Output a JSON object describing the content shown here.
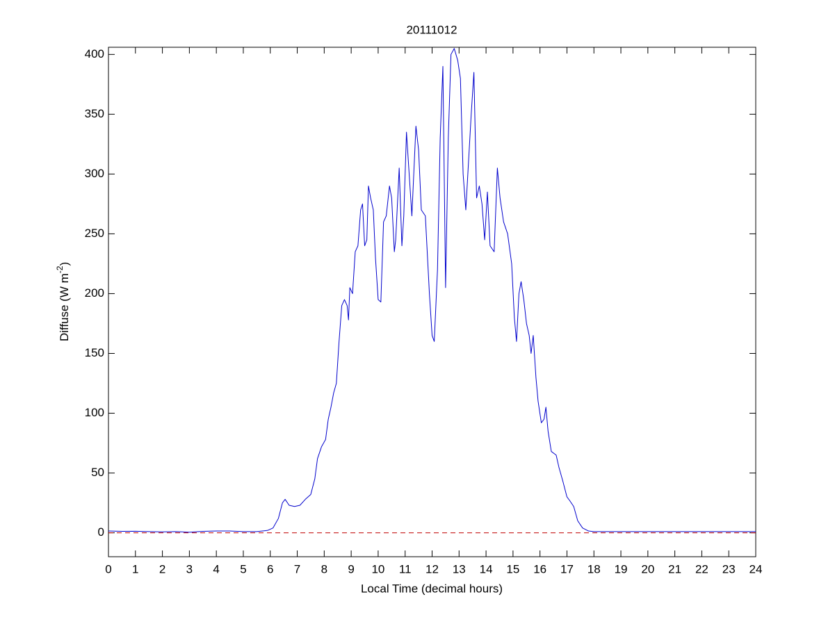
{
  "chart_data": {
    "type": "line",
    "title": "20111012",
    "xlabel": "Local Time (decimal hours)",
    "ylabel": {
      "text": "Diffuse (W m",
      "superscript": "-2",
      "suffix": ")"
    },
    "xlim": [
      0,
      24
    ],
    "xticks": [
      0,
      1,
      2,
      3,
      4,
      5,
      6,
      7,
      8,
      9,
      10,
      11,
      12,
      13,
      14,
      15,
      16,
      17,
      18,
      19,
      20,
      21,
      22,
      23,
      24
    ],
    "ylim": [
      -20,
      406
    ],
    "yticks": [
      0,
      50,
      100,
      150,
      200,
      250,
      300,
      350,
      400
    ],
    "grid": false,
    "reference_line": {
      "value": 0,
      "color": "#c00000",
      "dashed": true
    },
    "series": [
      {
        "color": "#0000cc",
        "x": [
          0,
          0.5,
          1,
          1.5,
          2,
          2.5,
          3,
          3.5,
          4,
          4.5,
          5,
          5.5,
          5.9,
          6.1,
          6.3,
          6.45,
          6.55,
          6.7,
          6.9,
          7.1,
          7.3,
          7.5,
          7.65,
          7.75,
          7.9,
          8.05,
          8.15,
          8.25,
          8.35,
          8.45,
          8.55,
          8.65,
          8.75,
          8.85,
          8.9,
          8.95,
          9.05,
          9.15,
          9.25,
          9.35,
          9.42,
          9.5,
          9.58,
          9.64,
          9.72,
          9.82,
          9.9,
          10.0,
          10.1,
          10.2,
          10.3,
          10.42,
          10.5,
          10.6,
          10.65,
          10.78,
          10.88,
          10.95,
          11.05,
          11.15,
          11.25,
          11.4,
          11.5,
          11.6,
          11.75,
          11.9,
          12.0,
          12.08,
          12.2,
          12.3,
          12.4,
          12.5,
          12.6,
          12.7,
          12.82,
          12.95,
          13.05,
          13.15,
          13.25,
          13.35,
          13.45,
          13.55,
          13.65,
          13.75,
          13.85,
          13.95,
          14.05,
          14.15,
          14.3,
          14.42,
          14.52,
          14.65,
          14.8,
          14.95,
          15.05,
          15.13,
          15.22,
          15.3,
          15.4,
          15.5,
          15.6,
          15.67,
          15.75,
          15.85,
          15.93,
          16.05,
          16.15,
          16.22,
          16.3,
          16.42,
          16.6,
          16.7,
          16.85,
          17,
          17.1,
          17.25,
          17.4,
          17.58,
          17.8,
          18,
          19,
          20,
          21,
          22,
          23,
          24
        ],
        "values": [
          1.5,
          1.2,
          1.3,
          1,
          0.8,
          1,
          0.5,
          1.2,
          1.5,
          1.5,
          1,
          1,
          2,
          4,
          12,
          25,
          28,
          23,
          22,
          23,
          28,
          32,
          45,
          62,
          72,
          78,
          95,
          105,
          117,
          125,
          160,
          190,
          195,
          190,
          178,
          205,
          200,
          235,
          240,
          270,
          275,
          240,
          245,
          290,
          280,
          270,
          230,
          195,
          193,
          260,
          265,
          290,
          280,
          235,
          245,
          305,
          240,
          265,
          335,
          300,
          265,
          340,
          320,
          270,
          265,
          200,
          165,
          160,
          220,
          330,
          390,
          205,
          330,
          400,
          405,
          395,
          380,
          300,
          270,
          310,
          350,
          385,
          280,
          290,
          275,
          245,
          285,
          240,
          235,
          305,
          280,
          260,
          250,
          225,
          180,
          160,
          200,
          210,
          195,
          175,
          165,
          150,
          165,
          130,
          110,
          92,
          95,
          105,
          85,
          68,
          65,
          55,
          43,
          30,
          27,
          22,
          10,
          4,
          1.5,
          1,
          1,
          1,
          1,
          1,
          1,
          1
        ]
      }
    ]
  }
}
